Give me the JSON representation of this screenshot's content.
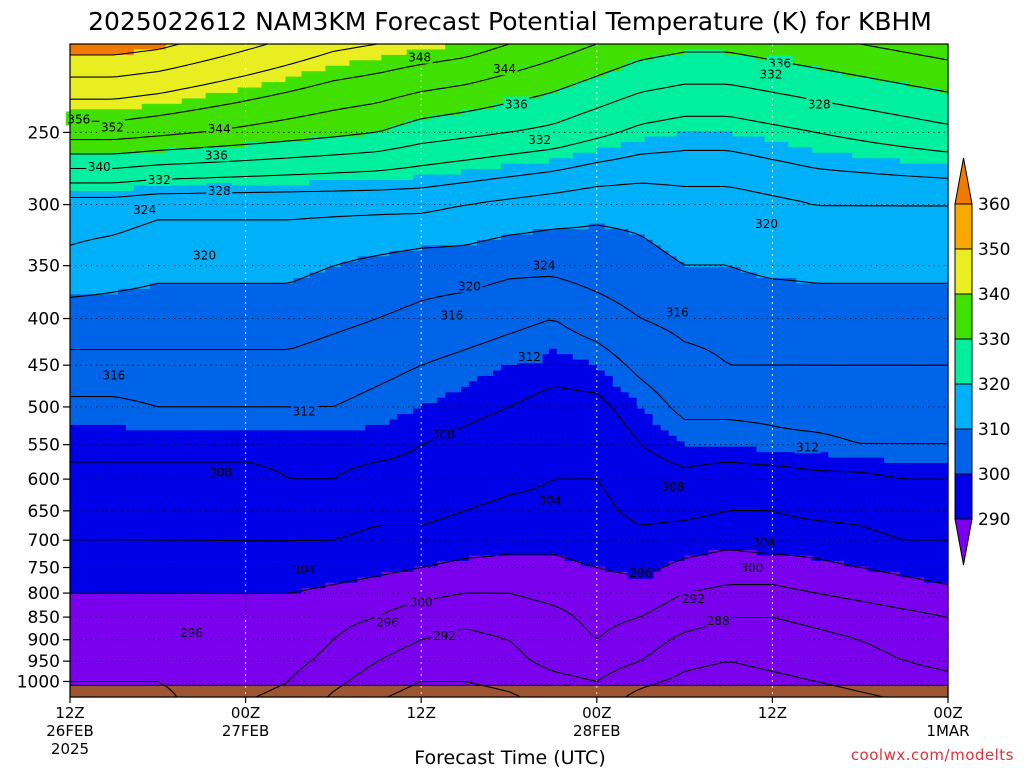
{
  "title": "2025022612 NAM3KM Forecast Potential Temperature (K) for KBHM",
  "watermark": "coolwx.com/modelts",
  "colors": {
    "bands": [
      "#7a00ee",
      "#0000e8",
      "#0064e8",
      "#00b0f8",
      "#00f0a0",
      "#40e000",
      "#e8ee20",
      "#f8a800"
    ],
    "below_colorbar": "#7a00ee",
    "above_colorbar": "#f07a00",
    "ground": "#9c5530",
    "line": "#000000",
    "watermark": "#e0303a"
  },
  "chart_data": {
    "type": "heatmap",
    "title": "2025022612 NAM3KM Forecast Potential Temperature (K) for KBHM",
    "xlabel": "Forecast Time (UTC)",
    "ylabel": "",
    "y_scale": "pressure (log), inverted",
    "ylim": [
      1040,
      200
    ],
    "x_hours": [
      0,
      60
    ],
    "x_ticks": [
      {
        "hour": 0,
        "lines": [
          "12Z",
          "26FEB",
          "2025"
        ]
      },
      {
        "hour": 12,
        "lines": [
          "00Z",
          "27FEB"
        ]
      },
      {
        "hour": 24,
        "lines": [
          "12Z"
        ]
      },
      {
        "hour": 36,
        "lines": [
          "00Z",
          "28FEB"
        ]
      },
      {
        "hour": 48,
        "lines": [
          "12Z"
        ]
      },
      {
        "hour": 60,
        "lines": [
          "00Z",
          "1MAR"
        ]
      }
    ],
    "y_ticks": [
      250,
      300,
      350,
      400,
      450,
      500,
      550,
      600,
      650,
      700,
      750,
      800,
      850,
      900,
      950,
      1000
    ],
    "grid": "dotted",
    "colorbar": {
      "levels": [
        290,
        300,
        310,
        320,
        330,
        340,
        350,
        360
      ],
      "labels": [
        "290",
        "300",
        "310",
        "320",
        "330",
        "340",
        "350",
        "360"
      ],
      "extend": "both",
      "placement": "right"
    },
    "surface_pressure_hpa": 1010,
    "contour_interval_K": 4,
    "hours": [
      0,
      3,
      6,
      9,
      12,
      15,
      18,
      21,
      24,
      27,
      30,
      33,
      36,
      39,
      42,
      45,
      48,
      51,
      54,
      57,
      60
    ],
    "levels_hpa": [
      1000,
      950,
      900,
      850,
      800,
      750,
      700,
      650,
      600,
      550,
      500,
      450,
      400,
      350,
      300,
      250,
      200
    ],
    "theta_K": [
      [
        296,
        296,
        296,
        297,
        297,
        296,
        293,
        290,
        288,
        288,
        289,
        291,
        292,
        289,
        287,
        286,
        287,
        288,
        289,
        290,
        291
      ],
      [
        297,
        297,
        297,
        297,
        298,
        297,
        295,
        292,
        290,
        290,
        291,
        293,
        294,
        292,
        289,
        288,
        289,
        290,
        291,
        292,
        293
      ],
      [
        298,
        298,
        298,
        298,
        299,
        298,
        296,
        294,
        292,
        291,
        292,
        294,
        296,
        294,
        291,
        290,
        290,
        291,
        292,
        293,
        294
      ],
      [
        299,
        299,
        299,
        299,
        300,
        299,
        297,
        296,
        294,
        293,
        294,
        295,
        297,
        296,
        294,
        292,
        292,
        293,
        294,
        295,
        296
      ],
      [
        300,
        300,
        300,
        300,
        300,
        300,
        299,
        298,
        297,
        296,
        296,
        297,
        298,
        298,
        296,
        295,
        295,
        296,
        297,
        298,
        299
      ],
      [
        302,
        302,
        303,
        303,
        303,
        303,
        302,
        301,
        300,
        299,
        299,
        299,
        300,
        301,
        299,
        298,
        298,
        299,
        300,
        301,
        302
      ],
      [
        304,
        304,
        304,
        304,
        304,
        304,
        304,
        303,
        303,
        302,
        301,
        301,
        302,
        303,
        302,
        301,
        302,
        302,
        303,
        304,
        304
      ],
      [
        305,
        305,
        305,
        305,
        306,
        306,
        306,
        305,
        305,
        304,
        303,
        303,
        303,
        305,
        305,
        304,
        304,
        305,
        305,
        306,
        306
      ],
      [
        307,
        307,
        307,
        307,
        307,
        308,
        308,
        307,
        307,
        306,
        305,
        304,
        304,
        306,
        307,
        306,
        306,
        307,
        307,
        308,
        308
      ],
      [
        309,
        309,
        309,
        309,
        309,
        309,
        309,
        309,
        308,
        307,
        306,
        305,
        305,
        308,
        310,
        310,
        311,
        311,
        312,
        312,
        312
      ],
      [
        311,
        311,
        312,
        312,
        312,
        312,
        312,
        311,
        310,
        309,
        308,
        307,
        307,
        310,
        313,
        313,
        313,
        314,
        314,
        314,
        314
      ],
      [
        315,
        315,
        315,
        315,
        315,
        315,
        314,
        313,
        312,
        311,
        310,
        309,
        310,
        313,
        315,
        316,
        316,
        316,
        316,
        316,
        316
      ],
      [
        318,
        318,
        318,
        318,
        318,
        318,
        317,
        316,
        315,
        314,
        313,
        312,
        314,
        316,
        317,
        317,
        317,
        318,
        318,
        318,
        318
      ],
      [
        323,
        322,
        321,
        321,
        321,
        321,
        320,
        319,
        318,
        318,
        317,
        317,
        318,
        319,
        320,
        320,
        321,
        321,
        321,
        321,
        321
      ],
      [
        326,
        326,
        325,
        325,
        325,
        325,
        325,
        325,
        325,
        324,
        323,
        322,
        321,
        321,
        322,
        322,
        323,
        324,
        324,
        324,
        324
      ],
      [
        346,
        346,
        345,
        344,
        343,
        342,
        341,
        340,
        338,
        337,
        336,
        335,
        333,
        331,
        330,
        330,
        331,
        332,
        333,
        334,
        335
      ],
      [
        362,
        362,
        361,
        359,
        357,
        355,
        353,
        352,
        351,
        350,
        348,
        346,
        344,
        342,
        341,
        341,
        342,
        343,
        344,
        345,
        346
      ]
    ],
    "contour_labels": [
      {
        "text": "356",
        "hour": 0.6,
        "p": 242
      },
      {
        "text": "352",
        "hour": 2.9,
        "p": 247
      },
      {
        "text": "348",
        "hour": 23.9,
        "p": 207
      },
      {
        "text": "344",
        "hour": 29.7,
        "p": 213
      },
      {
        "text": "344",
        "hour": 10.2,
        "p": 248
      },
      {
        "text": "340",
        "hour": 2.0,
        "p": 273
      },
      {
        "text": "336",
        "hour": 10.0,
        "p": 265
      },
      {
        "text": "336",
        "hour": 30.5,
        "p": 233
      },
      {
        "text": "336",
        "hour": 48.5,
        "p": 210
      },
      {
        "text": "332",
        "hour": 6.1,
        "p": 282
      },
      {
        "text": "332",
        "hour": 32.1,
        "p": 255
      },
      {
        "text": "332",
        "hour": 47.9,
        "p": 216
      },
      {
        "text": "328",
        "hour": 10.2,
        "p": 290
      },
      {
        "text": "328",
        "hour": 51.2,
        "p": 233
      },
      {
        "text": "324",
        "hour": 5.1,
        "p": 304
      },
      {
        "text": "324",
        "hour": 32.4,
        "p": 350
      },
      {
        "text": "320",
        "hour": 9.2,
        "p": 341
      },
      {
        "text": "320",
        "hour": 27.3,
        "p": 369
      },
      {
        "text": "320",
        "hour": 47.6,
        "p": 315
      },
      {
        "text": "316",
        "hour": 26.1,
        "p": 397
      },
      {
        "text": "316",
        "hour": 41.5,
        "p": 394
      },
      {
        "text": "316",
        "hour": 3.0,
        "p": 462
      },
      {
        "text": "312",
        "hour": 31.4,
        "p": 441
      },
      {
        "text": "312",
        "hour": 16.0,
        "p": 506
      },
      {
        "text": "312",
        "hour": 50.4,
        "p": 554
      },
      {
        "text": "308",
        "hour": 25.5,
        "p": 536
      },
      {
        "text": "308",
        "hour": 10.3,
        "p": 590
      },
      {
        "text": "308",
        "hour": 41.2,
        "p": 612
      },
      {
        "text": "304",
        "hour": 32.8,
        "p": 633
      },
      {
        "text": "304",
        "hour": 16.0,
        "p": 755
      },
      {
        "text": "304",
        "hour": 47.4,
        "p": 704
      },
      {
        "text": "300",
        "hour": 46.6,
        "p": 751
      },
      {
        "text": "300",
        "hour": 24.0,
        "p": 819
      },
      {
        "text": "296",
        "hour": 39.0,
        "p": 760
      },
      {
        "text": "296",
        "hour": 21.7,
        "p": 862
      },
      {
        "text": "296",
        "hour": 8.3,
        "p": 885
      },
      {
        "text": "292",
        "hour": 42.6,
        "p": 812
      },
      {
        "text": "292",
        "hour": 25.6,
        "p": 892
      },
      {
        "text": "288",
        "hour": 44.3,
        "p": 858
      }
    ]
  }
}
